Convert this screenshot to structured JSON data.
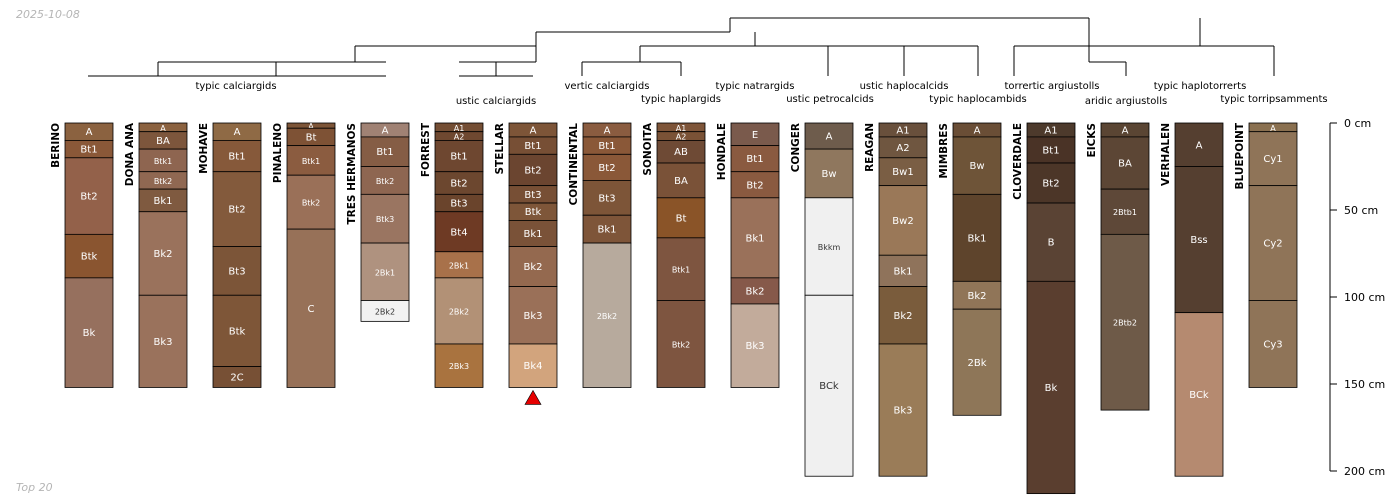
{
  "header": {
    "date": "2025-10-08"
  },
  "footer": {
    "note": "Top 20"
  },
  "depth_axis": {
    "max_cm": 200,
    "unit": "cm",
    "ticks": [
      "0 cm",
      "50 cm",
      "100 cm",
      "150 cm",
      "200 cm"
    ]
  },
  "taxa": [
    "typic calciargids",
    "ustic calciargids",
    "vertic calciargids",
    "typic haplargids",
    "typic natrargids",
    "ustic petrocalcids",
    "ustic haplocalcids",
    "typic haplocambids",
    "torrertic argiustolls",
    "aridic argiustolls",
    "typic haplotorrerts",
    "typic torripsamments"
  ],
  "profiles": [
    {
      "name": "BERINO",
      "horizons": [
        {
          "label": "A",
          "top": 0,
          "bottom": 10,
          "color": "#8b6240"
        },
        {
          "label": "Bt1",
          "top": 10,
          "bottom": 20,
          "color": "#8a5838"
        },
        {
          "label": "Bt2",
          "top": 20,
          "bottom": 64,
          "color": "#93614a"
        },
        {
          "label": "Btk",
          "top": 64,
          "bottom": 89,
          "color": "#8a5530"
        },
        {
          "label": "Bk",
          "top": 89,
          "bottom": 152,
          "color": "#96705e"
        }
      ]
    },
    {
      "name": "DONA ANA",
      "horizons": [
        {
          "label": "A",
          "top": 0,
          "bottom": 5,
          "color": "#8b6240"
        },
        {
          "label": "BA",
          "top": 5,
          "bottom": 15,
          "color": "#7d563c"
        },
        {
          "label": "Btk1",
          "top": 15,
          "bottom": 28,
          "color": "#8e6550"
        },
        {
          "label": "Btk2",
          "top": 28,
          "bottom": 38,
          "color": "#906852"
        },
        {
          "label": "Bk1",
          "top": 38,
          "bottom": 51,
          "color": "#7f5a40"
        },
        {
          "label": "Bk2",
          "top": 51,
          "bottom": 99,
          "color": "#9a725c"
        },
        {
          "label": "Bk3",
          "top": 99,
          "bottom": 152,
          "color": "#9a725c"
        }
      ]
    },
    {
      "name": "MOHAVE",
      "horizons": [
        {
          "label": "A",
          "top": 0,
          "bottom": 10,
          "color": "#8f6a45"
        },
        {
          "label": "Bt1",
          "top": 10,
          "bottom": 28,
          "color": "#86593a"
        },
        {
          "label": "Bt2",
          "top": 28,
          "bottom": 71,
          "color": "#835a3c"
        },
        {
          "label": "Bt3",
          "top": 71,
          "bottom": 99,
          "color": "#7c5538"
        },
        {
          "label": "Btk",
          "top": 99,
          "bottom": 140,
          "color": "#7e5638"
        },
        {
          "label": "2C",
          "top": 140,
          "bottom": 152,
          "color": "#775035"
        }
      ]
    },
    {
      "name": "PINALENO",
      "horizons": [
        {
          "label": "A",
          "top": 0,
          "bottom": 3,
          "color": "#7d5538"
        },
        {
          "label": "Bt",
          "top": 3,
          "bottom": 13,
          "color": "#7e5235"
        },
        {
          "label": "Btk1",
          "top": 13,
          "bottom": 30,
          "color": "#8b5c40"
        },
        {
          "label": "Btk2",
          "top": 30,
          "bottom": 61,
          "color": "#9a7058"
        },
        {
          "label": "C",
          "top": 61,
          "bottom": 152,
          "color": "#977158"
        }
      ]
    },
    {
      "name": "TRES HERMANOS",
      "horizons": [
        {
          "label": "A",
          "top": 0,
          "bottom": 8,
          "color": "#a08274"
        },
        {
          "label": "Bt1",
          "top": 8,
          "bottom": 25,
          "color": "#855d45"
        },
        {
          "label": "Btk2",
          "top": 25,
          "bottom": 41,
          "color": "#8e6651"
        },
        {
          "label": "Btk3",
          "top": 41,
          "bottom": 69,
          "color": "#9a7561"
        },
        {
          "label": "2Bk1",
          "top": 69,
          "bottom": 102,
          "color": "#af927f"
        },
        {
          "label": "2Bk2",
          "top": 102,
          "bottom": 114,
          "color": "#f2f2f2"
        }
      ]
    },
    {
      "name": "FORREST",
      "horizons": [
        {
          "label": "A1",
          "top": 0,
          "bottom": 5,
          "color": "#744e34"
        },
        {
          "label": "A2",
          "top": 5,
          "bottom": 10,
          "color": "#6f4830"
        },
        {
          "label": "Bt1",
          "top": 10,
          "bottom": 28,
          "color": "#6e4730"
        },
        {
          "label": "Bt2",
          "top": 28,
          "bottom": 41,
          "color": "#6c472f"
        },
        {
          "label": "Bt3",
          "top": 41,
          "bottom": 51,
          "color": "#6a442c"
        },
        {
          "label": "Bt4",
          "top": 51,
          "bottom": 74,
          "color": "#6e3a24"
        },
        {
          "label": "2Bk1",
          "top": 74,
          "bottom": 89,
          "color": "#a8714a"
        },
        {
          "label": "2Bk2",
          "top": 89,
          "bottom": 127,
          "color": "#b29176"
        },
        {
          "label": "2Bk3",
          "top": 127,
          "bottom": 152,
          "color": "#a9733f"
        }
      ]
    },
    {
      "name": "STELLAR",
      "marker": true,
      "horizons": [
        {
          "label": "A",
          "top": 0,
          "bottom": 8,
          "color": "#7d5538"
        },
        {
          "label": "Bt1",
          "top": 8,
          "bottom": 18,
          "color": "#774f35"
        },
        {
          "label": "Bt2",
          "top": 18,
          "bottom": 36,
          "color": "#6b4530"
        },
        {
          "label": "Bt3",
          "top": 36,
          "bottom": 46,
          "color": "#774f35"
        },
        {
          "label": "Btk",
          "top": 46,
          "bottom": 56,
          "color": "#7e5639"
        },
        {
          "label": "Bk1",
          "top": 56,
          "bottom": 71,
          "color": "#7a5238"
        },
        {
          "label": "Bk2",
          "top": 71,
          "bottom": 94,
          "color": "#94694f"
        },
        {
          "label": "Bk3",
          "top": 94,
          "bottom": 127,
          "color": "#9a7058"
        },
        {
          "label": "Bk4",
          "top": 127,
          "bottom": 152,
          "color": "#d2a47d"
        }
      ]
    },
    {
      "name": "CONTINENTAL",
      "horizons": [
        {
          "label": "A",
          "top": 0,
          "bottom": 8,
          "color": "#8a5c40"
        },
        {
          "label": "Bt1",
          "top": 8,
          "bottom": 18,
          "color": "#8a5838"
        },
        {
          "label": "Bt2",
          "top": 18,
          "bottom": 33,
          "color": "#8a5838"
        },
        {
          "label": "Bt3",
          "top": 33,
          "bottom": 53,
          "color": "#7d5538"
        },
        {
          "label": "Bk1",
          "top": 53,
          "bottom": 69,
          "color": "#7e5539"
        },
        {
          "label": "2Bk2",
          "top": 69,
          "bottom": 152,
          "color": "#b7aa9d"
        }
      ]
    },
    {
      "name": "SONOITA",
      "horizons": [
        {
          "label": "A1",
          "top": 0,
          "bottom": 5,
          "color": "#7e5539"
        },
        {
          "label": "A2",
          "top": 5,
          "bottom": 10,
          "color": "#7a5236"
        },
        {
          "label": "AB",
          "top": 10,
          "bottom": 23,
          "color": "#6e4a35"
        },
        {
          "label": "BA",
          "top": 23,
          "bottom": 43,
          "color": "#7a5238"
        },
        {
          "label": "Bt",
          "top": 43,
          "bottom": 66,
          "color": "#8a5428"
        },
        {
          "label": "Btk1",
          "top": 66,
          "bottom": 102,
          "color": "#7e5540"
        },
        {
          "label": "Btk2",
          "top": 102,
          "bottom": 152,
          "color": "#7e5540"
        }
      ]
    },
    {
      "name": "HONDALE",
      "horizons": [
        {
          "label": "E",
          "top": 0,
          "bottom": 13,
          "color": "#7a5a4c"
        },
        {
          "label": "Bt1",
          "top": 13,
          "bottom": 28,
          "color": "#8a5a40"
        },
        {
          "label": "Bt2",
          "top": 28,
          "bottom": 43,
          "color": "#8a5a40"
        },
        {
          "label": "Bk1",
          "top": 43,
          "bottom": 89,
          "color": "#9a715a"
        },
        {
          "label": "Bk2",
          "top": 89,
          "bottom": 104,
          "color": "#86594a"
        },
        {
          "label": "Bk3",
          "top": 104,
          "bottom": 152,
          "color": "#c2ab9b"
        }
      ]
    },
    {
      "name": "CONGER",
      "horizons": [
        {
          "label": "A",
          "top": 0,
          "bottom": 15,
          "color": "#6e5c4c"
        },
        {
          "label": "Bw",
          "top": 15,
          "bottom": 43,
          "color": "#8f775e"
        },
        {
          "label": "Bkkm",
          "top": 43,
          "bottom": 99,
          "color": "#f0f0f0"
        },
        {
          "label": "BCk",
          "top": 99,
          "bottom": 203,
          "color": "#f0f0f0"
        }
      ]
    },
    {
      "name": "REAGAN",
      "horizons": [
        {
          "label": "A1",
          "top": 0,
          "bottom": 8,
          "color": "#69503c"
        },
        {
          "label": "A2",
          "top": 8,
          "bottom": 20,
          "color": "#6f5640"
        },
        {
          "label": "Bw1",
          "top": 20,
          "bottom": 36,
          "color": "#7a5e44"
        },
        {
          "label": "Bw2",
          "top": 36,
          "bottom": 76,
          "color": "#9a7858"
        },
        {
          "label": "Bk1",
          "top": 76,
          "bottom": 94,
          "color": "#8f735b"
        },
        {
          "label": "Bk2",
          "top": 94,
          "bottom": 127,
          "color": "#7a5c3c"
        },
        {
          "label": "Bk3",
          "top": 127,
          "bottom": 203,
          "color": "#9a7c58"
        }
      ]
    },
    {
      "name": "MIMBRES",
      "horizons": [
        {
          "label": "A",
          "top": 0,
          "bottom": 8,
          "color": "#6a4e36"
        },
        {
          "label": "Bw",
          "top": 8,
          "bottom": 41,
          "color": "#6e5438"
        },
        {
          "label": "Bk1",
          "top": 41,
          "bottom": 91,
          "color": "#5e442c"
        },
        {
          "label": "Bk2",
          "top": 91,
          "bottom": 107,
          "color": "#907558"
        },
        {
          "label": "2Bk",
          "top": 107,
          "bottom": 168,
          "color": "#8e7658"
        }
      ]
    },
    {
      "name": "CLOVERDALE",
      "horizons": [
        {
          "label": "A1",
          "top": 0,
          "bottom": 8,
          "color": "#4d3a2c"
        },
        {
          "label": "Bt1",
          "top": 8,
          "bottom": 23,
          "color": "#4a3326"
        },
        {
          "label": "Bt2",
          "top": 23,
          "bottom": 46,
          "color": "#4c3628"
        },
        {
          "label": "B",
          "top": 46,
          "bottom": 91,
          "color": "#5a4334"
        },
        {
          "label": "Bk",
          "top": 91,
          "bottom": 213,
          "color": "#5a3e2f"
        }
      ]
    },
    {
      "name": "EICKS",
      "horizons": [
        {
          "label": "A",
          "top": 0,
          "bottom": 8,
          "color": "#5a4533"
        },
        {
          "label": "BA",
          "top": 8,
          "bottom": 38,
          "color": "#5c4635"
        },
        {
          "label": "2Btb1",
          "top": 38,
          "bottom": 64,
          "color": "#5e4838"
        },
        {
          "label": "2Btb2",
          "top": 64,
          "bottom": 165,
          "color": "#6e5a48"
        }
      ]
    },
    {
      "name": "VERHALEN",
      "horizons": [
        {
          "label": "A",
          "top": 0,
          "bottom": 25,
          "color": "#553f30"
        },
        {
          "label": "Bss",
          "top": 25,
          "bottom": 109,
          "color": "#553f30"
        },
        {
          "label": "BCk",
          "top": 109,
          "bottom": 203,
          "color": "#b58a70"
        }
      ]
    },
    {
      "name": "BLUEPOINT",
      "horizons": [
        {
          "label": "A",
          "top": 0,
          "bottom": 5,
          "color": "#8a7050"
        },
        {
          "label": "Cy1",
          "top": 5,
          "bottom": 36,
          "color": "#8f7458"
        },
        {
          "label": "Cy2",
          "top": 36,
          "bottom": 102,
          "color": "#8f7458"
        },
        {
          "label": "Cy3",
          "top": 102,
          "bottom": 152,
          "color": "#8f7458"
        }
      ]
    }
  ]
}
